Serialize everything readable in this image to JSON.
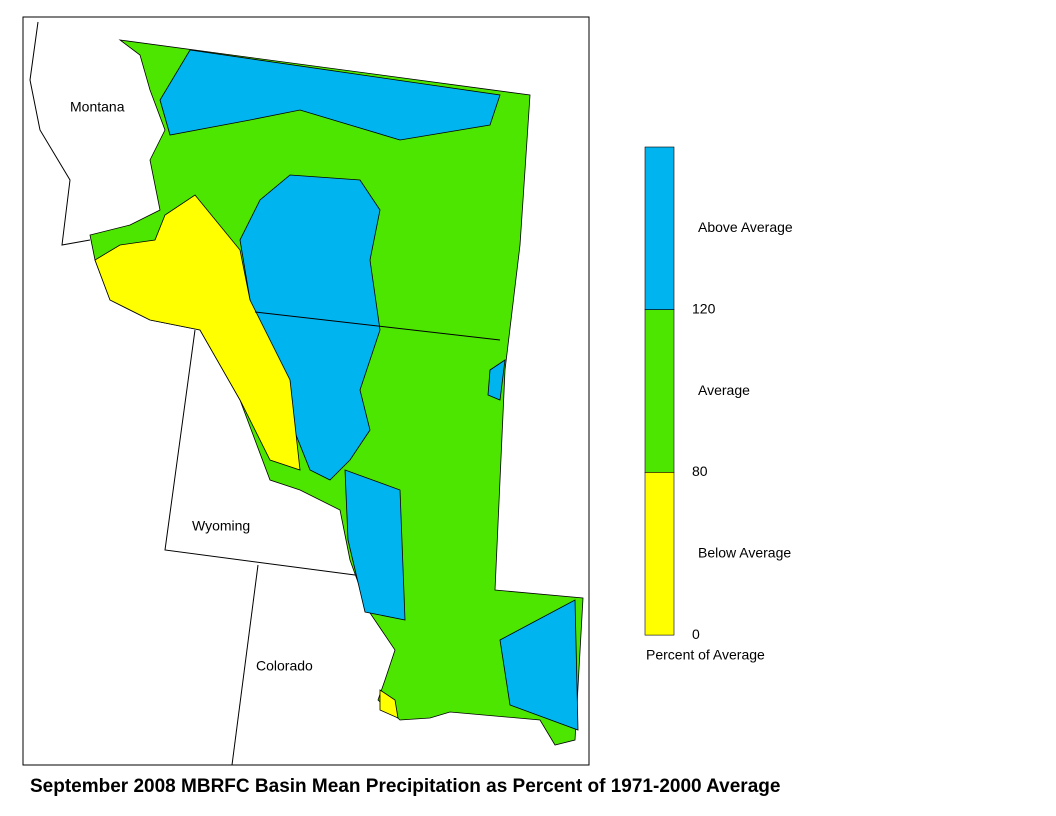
{
  "map": {
    "states": [
      "Montana",
      "Wyoming",
      "Colorado"
    ]
  },
  "legend": {
    "classes": [
      {
        "label": "Above Average",
        "color": "#00b4f0"
      },
      {
        "label": "Average",
        "color": "#4ce600"
      },
      {
        "label": "Below Average",
        "color": "#ffff00"
      }
    ],
    "ticks": [
      120,
      80,
      0
    ],
    "title": "Percent of Average"
  },
  "title": "September 2008 MBRFC Basin Mean Precipitation as Percent of 1971-2000 Average"
}
